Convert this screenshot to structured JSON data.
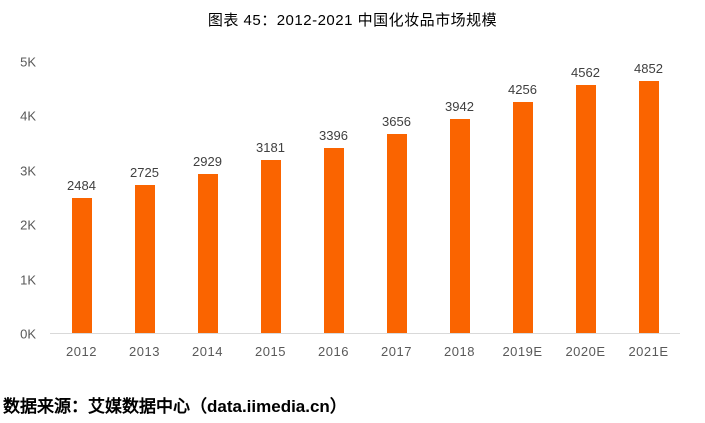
{
  "title": "图表 45：2012-2021 中国化妆品市场规模",
  "source": "数据来源：艾媒数据中心（data.iimedia.cn）",
  "colors": {
    "bar": "#fa6400",
    "axis_label": "#595959",
    "value_label": "#404040",
    "baseline": "#d9d9d9",
    "title": "#000000"
  },
  "chart_data": {
    "type": "bar",
    "title": "图表 45：2012-2021 中国化妆品市场规模",
    "categories": [
      "2012",
      "2013",
      "2014",
      "2015",
      "2016",
      "2017",
      "2018",
      "2019E",
      "2020E",
      "2021E"
    ],
    "values": [
      2484,
      2725,
      2929,
      3181,
      3396,
      3656,
      3942,
      4256,
      4562,
      4852
    ],
    "xlabel": "",
    "ylabel": "",
    "ylim": [
      0,
      5000
    ],
    "ytick_labels": [
      "0K",
      "1K",
      "2K",
      "3K",
      "4K",
      "5K"
    ],
    "ytick_values": [
      0,
      1000,
      2000,
      3000,
      4000,
      5000
    ],
    "grid": false,
    "legend": false,
    "data_labels": true
  }
}
